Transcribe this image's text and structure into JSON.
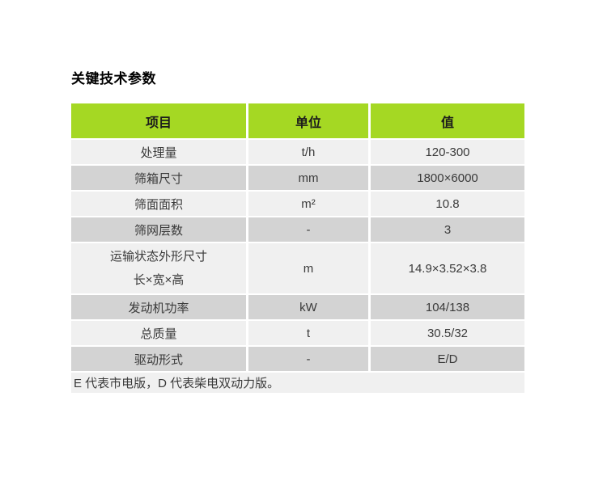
{
  "page": {
    "title": "关键技术参数"
  },
  "table": {
    "headers": {
      "item": "项目",
      "unit": "单位",
      "value": "值"
    },
    "rows": [
      {
        "item": "处理量",
        "unit": "t/h",
        "value": "120-300"
      },
      {
        "item": "筛箱尺寸",
        "unit": "mm",
        "value": "1800×6000"
      },
      {
        "item": "筛面面积",
        "unit": "m²",
        "value": "10.8"
      },
      {
        "item": "筛网层数",
        "unit": "-",
        "value": "3"
      },
      {
        "item": "运输状态外形尺寸",
        "item_line2": "长×宽×高",
        "unit": "m",
        "value": "14.9×3.52×3.8"
      },
      {
        "item": "发动机功率",
        "unit": "kW",
        "value": "104/138"
      },
      {
        "item": "总质量",
        "unit": "t",
        "value": "30.5/32"
      },
      {
        "item": "驱动形式",
        "unit": "-",
        "value": "E/D"
      }
    ],
    "footnote": "E 代表市电版，D 代表柴电双动力版。"
  },
  "colors": {
    "header_bg": "#a5d823",
    "row_light_bg": "#f0f0f0",
    "row_dark_bg": "#d3d3d3",
    "body_text": "#3a3a3a",
    "title_text": "#000000"
  }
}
